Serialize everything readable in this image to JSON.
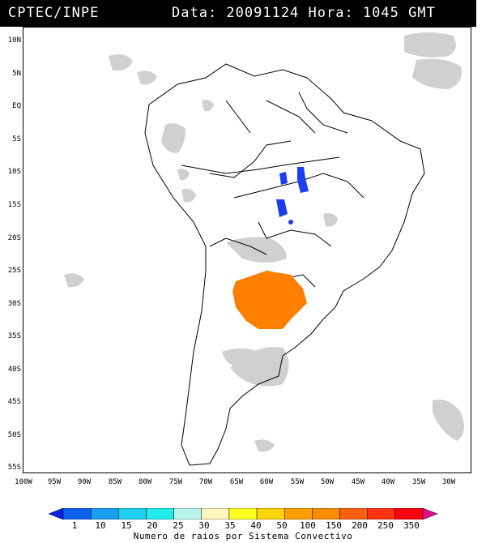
{
  "header": {
    "source": "CPTEC/INPE",
    "timestamp": "Data: 20091124 Hora: 1045 GMT"
  },
  "lat_labels": [
    "10N",
    "5N",
    "EQ",
    "5S",
    "10S",
    "15S",
    "20S",
    "25S",
    "30S",
    "35S",
    "40S",
    "45S",
    "50S",
    "55S"
  ],
  "lon_labels": [
    "100W",
    "95W",
    "90W",
    "85W",
    "80W",
    "75W",
    "70W",
    "65W",
    "60W",
    "55W",
    "50W",
    "45W",
    "40W",
    "35W",
    "30W"
  ],
  "colorbar": {
    "ticks": [
      "1",
      "10",
      "15",
      "20",
      "25",
      "30",
      "35",
      "40",
      "50",
      "100",
      "150",
      "200",
      "250",
      "350"
    ],
    "colors": [
      "#0a1fe6",
      "#1060f0",
      "#1a9ef0",
      "#20d0f0",
      "#20ecec",
      "#b8f4ec",
      "#fff6c0",
      "#ffff20",
      "#ffd400",
      "#ffa000",
      "#ff8c00",
      "#ff6010",
      "#ff3010",
      "#ff0010",
      "#e0108c"
    ],
    "title": "Numero de raios por Sistema Convectivo"
  },
  "colors": {
    "cloud_gray": "#c8c8c8",
    "lightning_orange": "#ff8000",
    "lightning_blue": "#1e3cf0"
  }
}
